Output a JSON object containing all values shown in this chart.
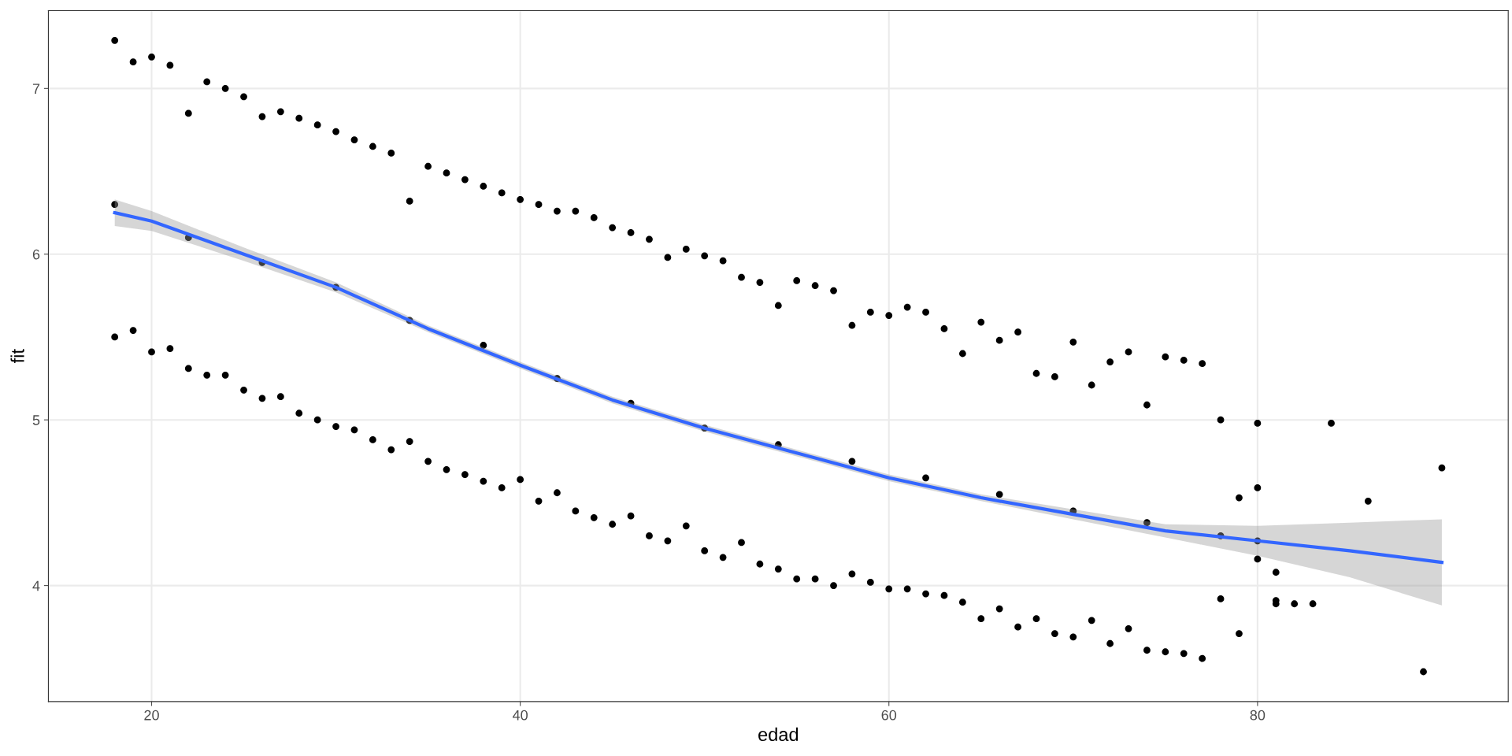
{
  "chart_data": {
    "type": "scatter",
    "xlabel": "edad",
    "ylabel": "fit",
    "xlim": [
      14.4,
      93.6
    ],
    "ylim": [
      3.3,
      7.47
    ],
    "xticks": [
      20,
      40,
      60,
      80
    ],
    "yticks": [
      4,
      5,
      6,
      7
    ],
    "grid": true,
    "marker": "circle",
    "series": [
      {
        "color": "#000000",
        "x": [
          18,
          19,
          20,
          21,
          22,
          23,
          24,
          25,
          26,
          27,
          28,
          29,
          30,
          31,
          32,
          33,
          34,
          35,
          36,
          37,
          38,
          39,
          40,
          41,
          42,
          43,
          44,
          45,
          46,
          47,
          48,
          49,
          50,
          51,
          52,
          53,
          54,
          55,
          56,
          57,
          58,
          59,
          60,
          61,
          62,
          63,
          64,
          65,
          66,
          67,
          68,
          69,
          70,
          71,
          72,
          73,
          74,
          75,
          76,
          77,
          78,
          18,
          19,
          20,
          21,
          22,
          23,
          24,
          25,
          26,
          27,
          28,
          29,
          30,
          31,
          32,
          33,
          34,
          35,
          36,
          37,
          38,
          39,
          40,
          41,
          42,
          43,
          44,
          45,
          46,
          47,
          48,
          49,
          50,
          51,
          52,
          53,
          54,
          55,
          56,
          57,
          58,
          59,
          60,
          61,
          62,
          63,
          64,
          65,
          66,
          67,
          68,
          69,
          70,
          71,
          72,
          73,
          74,
          75,
          76,
          77,
          78,
          18,
          22,
          26,
          30,
          34,
          38,
          42,
          46,
          50,
          54,
          58,
          62,
          66,
          70,
          74,
          78,
          79,
          79,
          80,
          80,
          80,
          80,
          81,
          81,
          81,
          82,
          83,
          84,
          86,
          89,
          90
        ],
        "values": [
          7.29,
          7.16,
          7.19,
          7.14,
          6.85,
          7.04,
          7.0,
          6.95,
          6.83,
          6.86,
          6.82,
          6.78,
          6.74,
          6.69,
          6.65,
          6.61,
          6.32,
          6.53,
          6.49,
          6.45,
          6.41,
          6.37,
          6.33,
          6.3,
          6.26,
          6.26,
          6.22,
          6.16,
          6.13,
          6.09,
          5.98,
          6.03,
          5.99,
          5.96,
          5.86,
          5.83,
          5.69,
          5.84,
          5.81,
          5.78,
          5.57,
          5.65,
          5.63,
          5.68,
          5.65,
          5.55,
          5.4,
          5.59,
          5.48,
          5.53,
          5.28,
          5.26,
          5.47,
          5.21,
          5.35,
          5.41,
          5.09,
          5.38,
          5.36,
          5.34,
          5.0,
          5.5,
          5.54,
          5.41,
          5.43,
          5.31,
          5.27,
          5.27,
          5.18,
          5.13,
          5.14,
          5.04,
          5.0,
          4.96,
          4.94,
          4.88,
          4.82,
          4.87,
          4.75,
          4.7,
          4.67,
          4.63,
          4.59,
          4.64,
          4.51,
          4.56,
          4.45,
          4.41,
          4.37,
          4.42,
          4.3,
          4.27,
          4.36,
          4.21,
          4.17,
          4.26,
          4.13,
          4.1,
          4.04,
          4.04,
          4.0,
          4.07,
          4.02,
          3.98,
          3.98,
          3.95,
          3.94,
          3.9,
          3.8,
          3.86,
          3.75,
          3.8,
          3.71,
          3.69,
          3.79,
          3.65,
          3.74,
          3.61,
          3.6,
          3.59,
          3.56,
          3.92,
          6.3,
          6.1,
          5.95,
          5.8,
          5.6,
          5.45,
          5.25,
          5.1,
          4.95,
          4.85,
          4.75,
          4.65,
          4.55,
          4.45,
          4.38,
          4.3,
          4.53,
          3.71,
          4.98,
          4.59,
          4.27,
          4.16,
          4.08,
          3.91,
          3.89,
          3.89,
          3.89,
          4.98,
          4.51,
          3.48,
          4.71
        ]
      },
      {
        "type": "line",
        "color": "#3366ff",
        "marker": "none",
        "line_style": "solid",
        "x": [
          18,
          20,
          25,
          30,
          35,
          40,
          45,
          50,
          55,
          60,
          65,
          70,
          75,
          80,
          85,
          90
        ],
        "values": [
          6.25,
          6.2,
          6.0,
          5.8,
          5.55,
          5.33,
          5.12,
          4.95,
          4.8,
          4.65,
          4.53,
          4.43,
          4.33,
          4.27,
          4.21,
          4.14
        ],
        "lower": [
          6.17,
          6.14,
          5.96,
          5.77,
          5.53,
          5.31,
          5.1,
          4.93,
          4.78,
          4.63,
          4.51,
          4.4,
          4.29,
          4.18,
          4.05,
          3.88
        ],
        "upper": [
          6.33,
          6.26,
          6.04,
          5.83,
          5.57,
          5.35,
          5.14,
          4.97,
          4.82,
          4.67,
          4.55,
          4.46,
          4.37,
          4.36,
          4.38,
          4.4
        ]
      }
    ]
  }
}
